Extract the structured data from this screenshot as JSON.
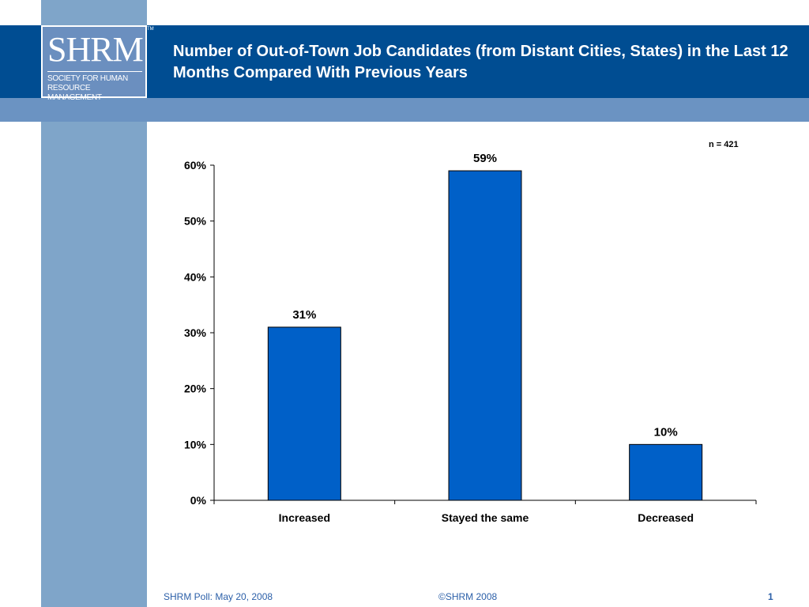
{
  "header": {
    "logo_text": "SHRM",
    "logo_subtitle_1": "SOCIETY FOR HUMAN",
    "logo_subtitle_2": "RESOURCE MANAGEMENT",
    "logo_tm": "TM",
    "title": "Number of Out-of-Town Job Candidates (from Distant Cities, States) in the Last 12 Months Compared With Previous Years"
  },
  "colors": {
    "header_band": "#004d92",
    "sub_band": "#6b93c2",
    "left_strip": "#7fa5c9",
    "bar": "#0060c8",
    "footer_text": "#2b5fa8"
  },
  "chart_data": {
    "type": "bar",
    "categories": [
      "Increased",
      "Stayed the same",
      "Decreased"
    ],
    "values": [
      31,
      59,
      10
    ],
    "value_labels": [
      "31%",
      "59%",
      "10%"
    ],
    "y_ticks": [
      0,
      10,
      20,
      30,
      40,
      50,
      60
    ],
    "y_tick_labels": [
      "0%",
      "10%",
      "20%",
      "30%",
      "40%",
      "50%",
      "60%"
    ],
    "ylim": [
      0,
      60
    ],
    "grid": false,
    "annotation": "n = 421"
  },
  "footer": {
    "source": "SHRM Poll: May 20, 2008",
    "copyright": "©SHRM 2008",
    "page_number": "1"
  }
}
